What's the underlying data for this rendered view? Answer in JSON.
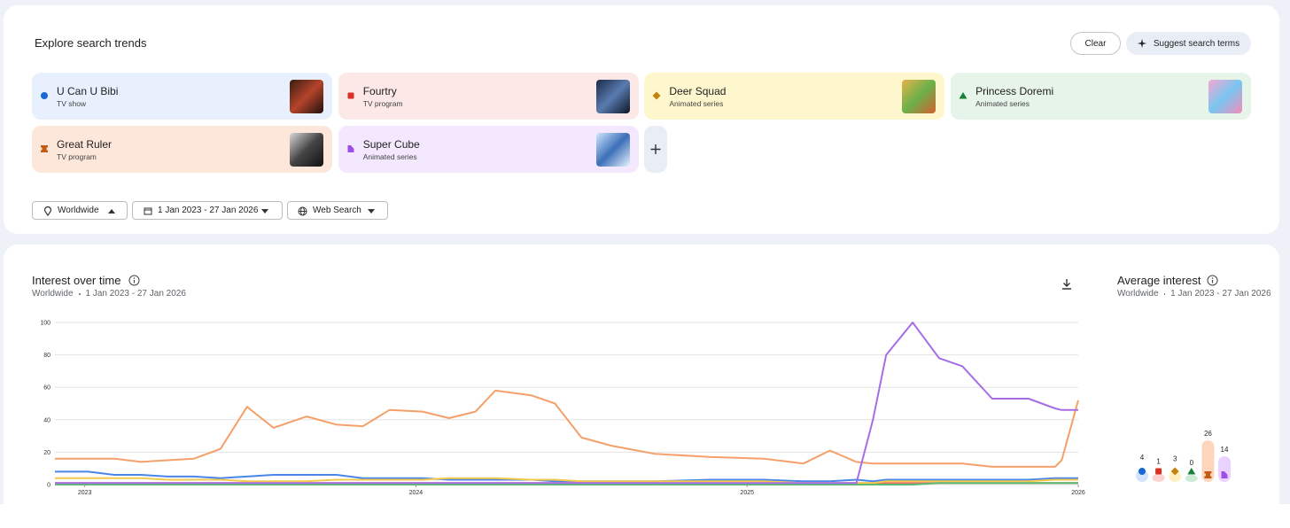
{
  "header": {
    "title": "Explore search trends",
    "clear_button": "Clear",
    "suggest_button": "Suggest search terms"
  },
  "terms": [
    {
      "name": "U Can U Bibi",
      "kind": "TV show",
      "color": "#1967d2",
      "background": "#e8f0fe"
    },
    {
      "name": "Fourtry",
      "kind": "TV program",
      "color": "#d93025",
      "background": "#fce8e6"
    },
    {
      "name": "Deer Squad",
      "kind": "Animated series",
      "color": "#c5820b",
      "background": "#fef7cd"
    },
    {
      "name": "Princess Doremi",
      "kind": "Animated series",
      "color": "#188038",
      "background": "#e6f4ea"
    },
    {
      "name": "Great Ruler",
      "kind": "TV program",
      "color": "#c25a12",
      "background": "#fde7da"
    },
    {
      "name": "Super Cube",
      "kind": "Animated series",
      "color": "#9e4ee6",
      "background": "#f3e8fd"
    }
  ],
  "filters": {
    "region": "Worldwide",
    "date_range": "1 Jan 2023 - 27 Jan 2026",
    "property": "Web Search"
  },
  "chart_data": [
    {
      "type": "line",
      "title": "Interest over time",
      "region": "Worldwide",
      "range": "1 Jan 2023 - 27 Jan 2026",
      "x": [
        2022.91,
        2023.01,
        2023.09,
        2023.17,
        2023.25,
        2023.33,
        2023.41,
        2023.49,
        2023.57,
        2023.67,
        2023.76,
        2023.84,
        2023.92,
        2024.02,
        2024.1,
        2024.18,
        2024.24,
        2024.35,
        2024.42,
        2024.5,
        2024.59,
        2024.72,
        2024.89,
        2025.05,
        2025.17,
        2025.25,
        2025.33,
        2025.38,
        2025.42,
        2025.5,
        2025.58,
        2025.65,
        2025.74,
        2025.85,
        2025.93,
        2025.95,
        2026.0
      ],
      "xlim": [
        2022.91,
        2026.0
      ],
      "xticks": [
        2023,
        2024,
        2025,
        2026
      ],
      "ylim": [
        0,
        100
      ],
      "yticks": [
        0,
        20,
        40,
        60,
        80,
        100
      ],
      "grid": true,
      "series": [
        {
          "name": "U Can U Bibi",
          "color": "#4a86e8",
          "values": [
            8,
            8,
            6,
            6,
            5,
            5,
            4,
            5,
            6,
            6,
            6,
            4,
            4,
            4,
            3,
            3,
            3,
            3,
            2,
            2,
            2,
            2,
            3,
            3,
            2,
            2,
            3,
            2,
            3,
            3,
            3,
            3,
            3,
            3,
            4,
            4,
            4
          ]
        },
        {
          "name": "Fourtry",
          "color": "#e8706a",
          "values": [
            1,
            1,
            1,
            1,
            1,
            1,
            1,
            1,
            1,
            1,
            1,
            1,
            1,
            1,
            1,
            1,
            1,
            1,
            1,
            1,
            1,
            1,
            1,
            1,
            1,
            1,
            1,
            1,
            1,
            1,
            1,
            1,
            1,
            1,
            1,
            1,
            1
          ]
        },
        {
          "name": "Deer Squad",
          "color": "#f2c94c",
          "values": [
            4,
            4,
            4,
            4,
            3,
            3,
            3,
            2,
            2,
            2,
            3,
            3,
            3,
            3,
            4,
            4,
            4,
            3,
            3,
            2,
            2,
            2,
            2,
            2,
            1,
            1,
            1,
            1,
            2,
            2,
            2,
            2,
            2,
            2,
            3,
            3,
            3
          ]
        },
        {
          "name": "Princess Doremi",
          "color": "#5bb974",
          "values": [
            0,
            0,
            0,
            0,
            0,
            0,
            0,
            0,
            0,
            0,
            0,
            0,
            0,
            0,
            0,
            0,
            0,
            0,
            0,
            0,
            0,
            0,
            0,
            0,
            0,
            0,
            0,
            0,
            0,
            0,
            1,
            1,
            1,
            1,
            1,
            1,
            1
          ]
        },
        {
          "name": "Great Ruler",
          "color": "#f5a06a",
          "values": [
            16,
            16,
            16,
            14,
            15,
            16,
            22,
            48,
            35,
            42,
            37,
            36,
            46,
            45,
            41,
            45,
            58,
            55,
            50,
            29,
            24,
            19,
            17,
            16,
            13,
            21,
            14,
            13,
            13,
            13,
            13,
            13,
            11,
            11,
            11,
            15,
            52
          ]
        },
        {
          "name": "Super Cube",
          "color": "#a66ee6",
          "values": [
            1,
            1,
            1,
            1,
            1,
            1,
            1,
            1,
            1,
            1,
            1,
            1,
            1,
            1,
            1,
            1,
            1,
            1,
            1,
            1,
            1,
            1,
            1,
            1,
            1,
            1,
            1,
            40,
            80,
            100,
            78,
            73,
            53,
            53,
            47,
            46,
            46
          ]
        }
      ]
    },
    {
      "type": "bar",
      "title": "Average interest",
      "region": "Worldwide",
      "range": "1 Jan 2023 - 27 Jan 2026",
      "values": [
        4,
        1,
        3,
        0,
        26,
        14
      ],
      "colors": [
        "#d2e3fc",
        "#fad2cf",
        "#feefc3",
        "#ceead6",
        "#fdd5bd",
        "#e9d2fd"
      ]
    }
  ]
}
